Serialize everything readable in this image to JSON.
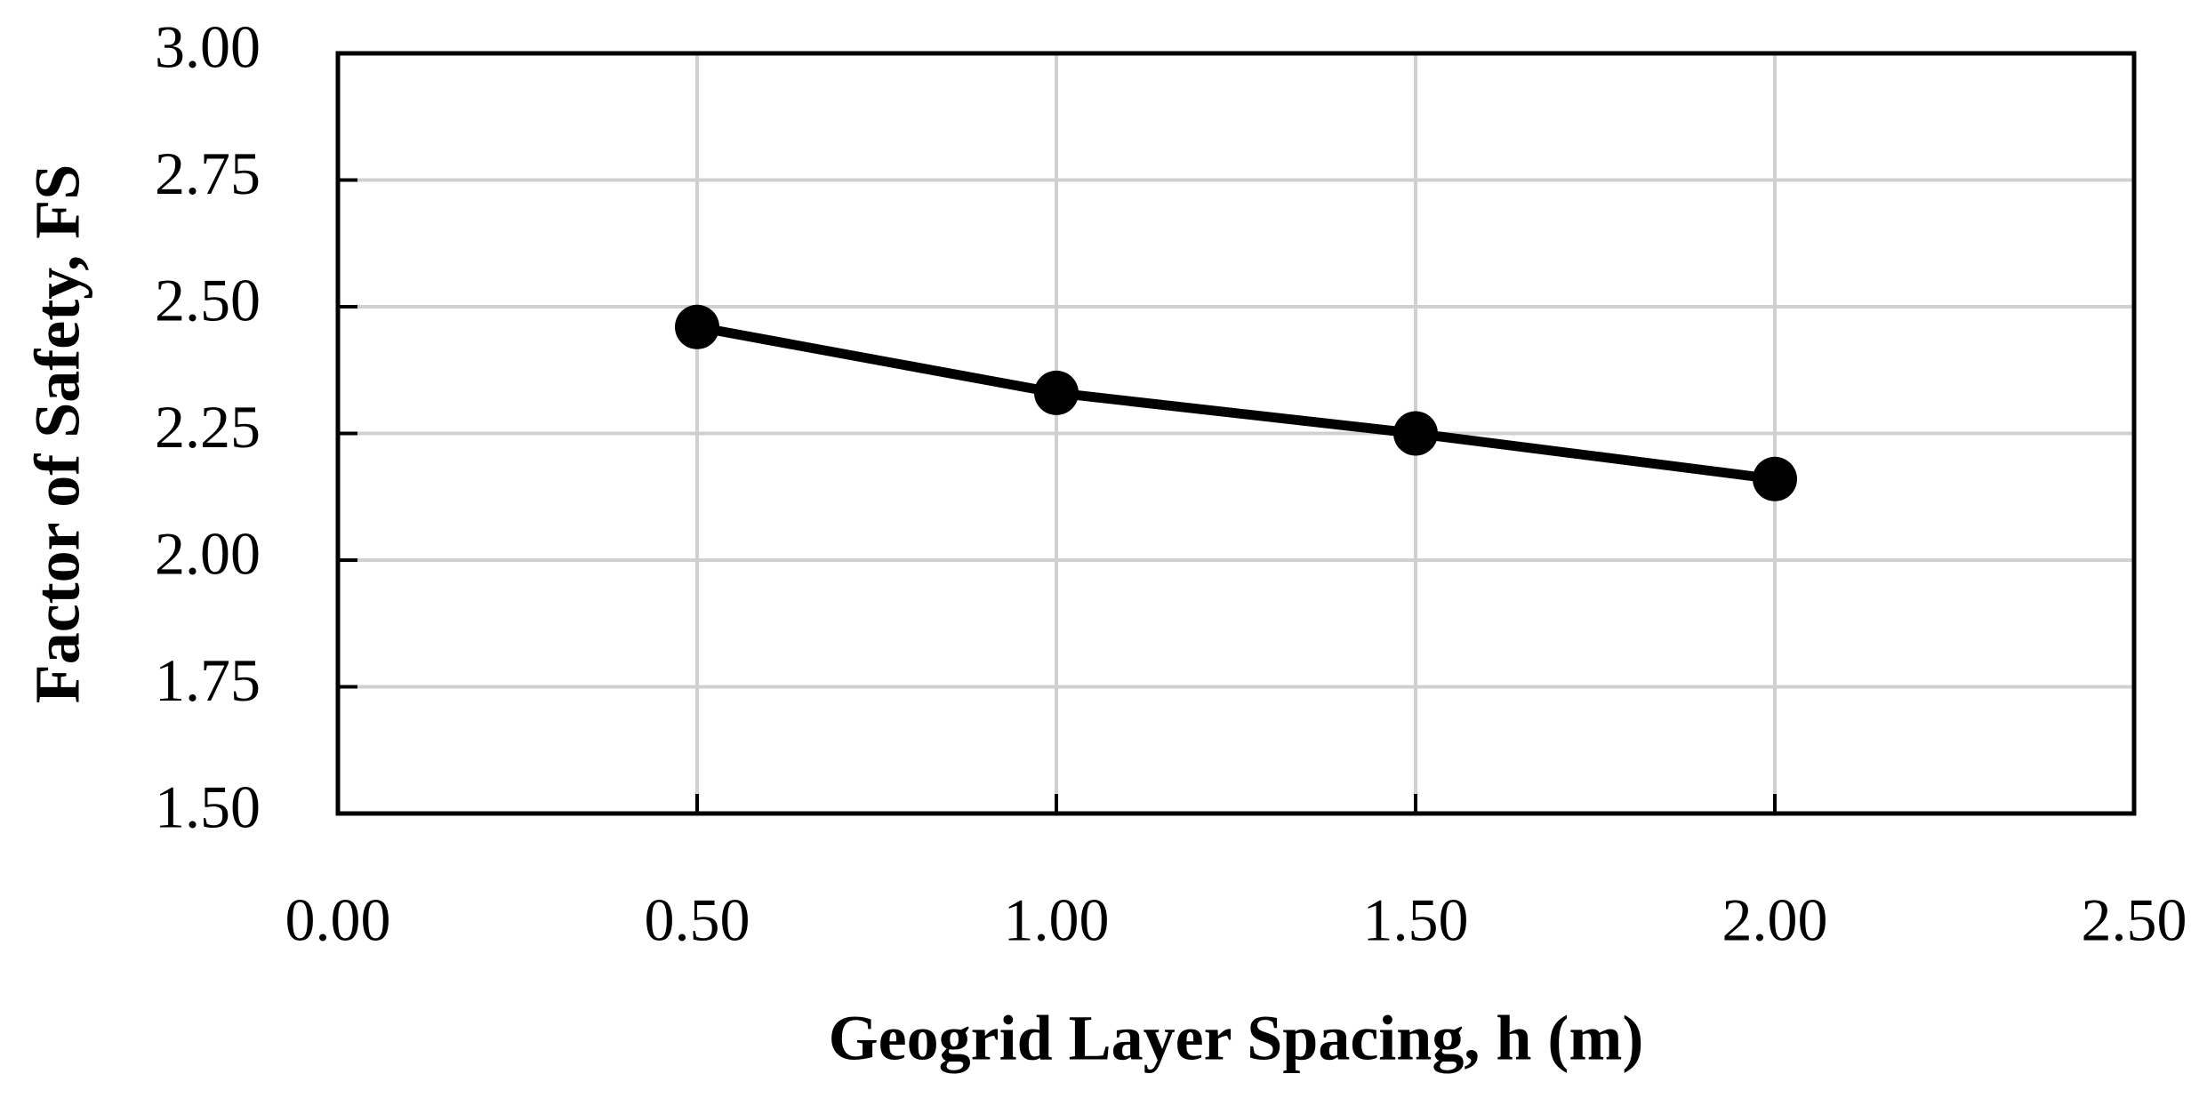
{
  "chart_data": {
    "type": "line",
    "x_label": "Geogrid Layer Spacing, h (m)",
    "y_label": "Factor of Safety, FS",
    "x": [
      0.5,
      1.0,
      1.5,
      2.0
    ],
    "series": [
      {
        "color": "#000000",
        "values": [
          2.46,
          2.33,
          2.25,
          2.16
        ]
      }
    ],
    "xlim": [
      0,
      2.5
    ],
    "xticks": [
      {
        "value": 0,
        "label": "0.00"
      },
      {
        "value": 0.5,
        "label": "0.50"
      },
      {
        "value": 1,
        "label": "1.00"
      },
      {
        "value": 1.5,
        "label": "1.50"
      },
      {
        "value": 2,
        "label": "2.00"
      },
      {
        "value": 2.5,
        "label": "2.50"
      }
    ],
    "ylim": [
      1.5,
      3
    ],
    "yticks": [
      {
        "value": 1.5,
        "label": "1.50"
      },
      {
        "value": 1.75,
        "label": "1.75"
      },
      {
        "value": 2,
        "label": "2.00"
      },
      {
        "value": 2.25,
        "label": "2.25"
      },
      {
        "value": 2.5,
        "label": "2.50"
      },
      {
        "value": 2.75,
        "label": "2.75"
      },
      {
        "value": 3,
        "label": "3.00"
      }
    ],
    "grid": true,
    "markers": true
  }
}
